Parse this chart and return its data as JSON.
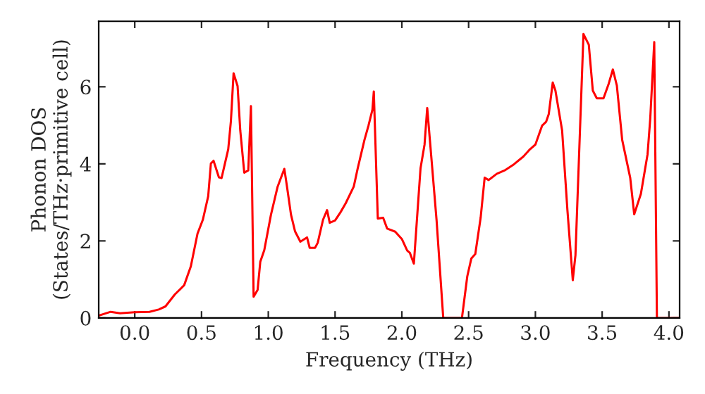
{
  "chart_data": {
    "type": "line",
    "xlabel": "Frequency (THz)",
    "ylabel": "Phonon DOS\n(States/THz·primitive cell)",
    "xlim": [
      -0.27,
      4.08
    ],
    "ylim": [
      0,
      7.7
    ],
    "xticks": [
      {
        "value": 0,
        "label": "0.0"
      },
      {
        "value": 0.5,
        "label": "0.5"
      },
      {
        "value": 1,
        "label": "1.0"
      },
      {
        "value": 1.5,
        "label": "1.5"
      },
      {
        "value": 2,
        "label": "2.0"
      },
      {
        "value": 2.5,
        "label": "2.5"
      },
      {
        "value": 3,
        "label": "3.0"
      },
      {
        "value": 3.5,
        "label": "3.5"
      },
      {
        "value": 4,
        "label": "4.0"
      }
    ],
    "yticks": [
      0,
      2,
      4,
      6
    ],
    "grid": false,
    "marker": "none",
    "line_style": "solid",
    "series": [
      {
        "color": "#ff0000",
        "x": [
          -0.27,
          -0.18,
          -0.11,
          0,
          0.11,
          0.18,
          0.23,
          0.3,
          0.37,
          0.42,
          0.47,
          0.51,
          0.55,
          0.57,
          0.59,
          0.63,
          0.65,
          0.7,
          0.72,
          0.74,
          0.77,
          0.79,
          0.82,
          0.85,
          0.87,
          0.89,
          0.92,
          0.94,
          0.97,
          1.02,
          1.07,
          1.12,
          1.14,
          1.17,
          1.2,
          1.24,
          1.29,
          1.31,
          1.35,
          1.37,
          1.41,
          1.44,
          1.46,
          1.5,
          1.54,
          1.58,
          1.64,
          1.67,
          1.72,
          1.75,
          1.78,
          1.79,
          1.82,
          1.86,
          1.89,
          1.95,
          2.0,
          2.04,
          2.06,
          2.09,
          2.14,
          2.17,
          2.19,
          2.21,
          2.26,
          2.31,
          2.45,
          2.49,
          2.52,
          2.55,
          2.59,
          2.62,
          2.65,
          2.71,
          2.77,
          2.84,
          2.91,
          2.96,
          3.0,
          3.05,
          3.08,
          3.1,
          3.13,
          3.15,
          3.2,
          3.24,
          3.28,
          3.3,
          3.36,
          3.4,
          3.43,
          3.46,
          3.51,
          3.55,
          3.58,
          3.61,
          3.65,
          3.71,
          3.74,
          3.79,
          3.84,
          3.86,
          3.89,
          3.91,
          4.08
        ],
        "values": [
          0.06,
          0.16,
          0.12,
          0.15,
          0.16,
          0.22,
          0.3,
          0.61,
          0.85,
          1.34,
          2.19,
          2.55,
          3.16,
          4.01,
          4.08,
          3.65,
          3.63,
          4.38,
          5.11,
          6.35,
          6.02,
          4.87,
          3.77,
          3.83,
          5.5,
          0.55,
          0.73,
          1.46,
          1.76,
          2.68,
          3.41,
          3.87,
          3.41,
          2.68,
          2.25,
          1.98,
          2.09,
          1.82,
          1.82,
          1.95,
          2.55,
          2.8,
          2.47,
          2.53,
          2.74,
          2.98,
          3.41,
          3.89,
          4.62,
          4.99,
          5.41,
          5.88,
          2.58,
          2.6,
          2.32,
          2.24,
          2.05,
          1.75,
          1.69,
          1.41,
          3.89,
          4.5,
          5.45,
          4.62,
          2.54,
          0,
          0,
          1.08,
          1.54,
          1.66,
          2.6,
          3.64,
          3.58,
          3.74,
          3.83,
          3.99,
          4.19,
          4.38,
          4.5,
          4.99,
          5.09,
          5.29,
          6.11,
          5.9,
          4.87,
          2.79,
          0.98,
          1.63,
          7.37,
          7.09,
          5.9,
          5.7,
          5.7,
          6.09,
          6.45,
          6.03,
          4.62,
          3.64,
          2.69,
          3.22,
          4.25,
          5.17,
          7.16,
          0,
          0
        ]
      }
    ]
  }
}
